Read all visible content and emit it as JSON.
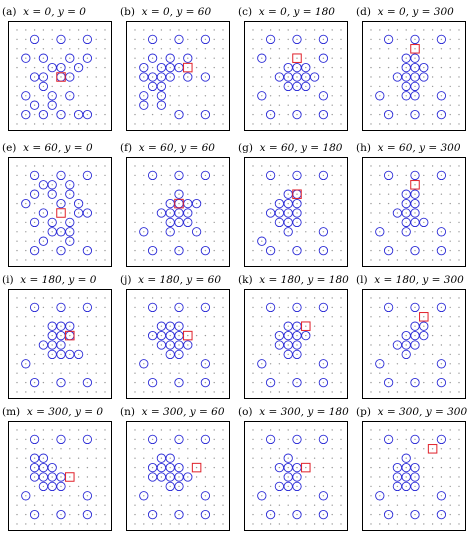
{
  "panels": [
    {
      "label": "(a)",
      "title": "x = 0, y = 0",
      "circles": [
        [
          2,
          1
        ],
        [
          5,
          1
        ],
        [
          8,
          1
        ],
        [
          1,
          3
        ],
        [
          3,
          3
        ],
        [
          6,
          3
        ],
        [
          8,
          3
        ],
        [
          4,
          4
        ],
        [
          5,
          4
        ],
        [
          7,
          4
        ],
        [
          2,
          5
        ],
        [
          3,
          5
        ],
        [
          5,
          5
        ],
        [
          6,
          5
        ],
        [
          3,
          6
        ],
        [
          1,
          7
        ],
        [
          4,
          7
        ],
        [
          6,
          7
        ],
        [
          2,
          8
        ],
        [
          4,
          8
        ],
        [
          1,
          9
        ],
        [
          3,
          9
        ],
        [
          5,
          9
        ],
        [
          7,
          9
        ],
        [
          8,
          9
        ]
      ],
      "square": [
        5,
        5
      ]
    },
    {
      "label": "(b)",
      "title": "x = 0, y = 60",
      "circles": [
        [
          2,
          1
        ],
        [
          5,
          1
        ],
        [
          8,
          1
        ],
        [
          2,
          3
        ],
        [
          4,
          3
        ],
        [
          6,
          3
        ],
        [
          1,
          4
        ],
        [
          3,
          4
        ],
        [
          4,
          4
        ],
        [
          5,
          4
        ],
        [
          1,
          5
        ],
        [
          2,
          5
        ],
        [
          3,
          5
        ],
        [
          4,
          5
        ],
        [
          6,
          5
        ],
        [
          8,
          5
        ],
        [
          2,
          6
        ],
        [
          3,
          6
        ],
        [
          1,
          7
        ],
        [
          3,
          7
        ],
        [
          1,
          8
        ],
        [
          3,
          8
        ],
        [
          5,
          9
        ],
        [
          8,
          9
        ]
      ],
      "square": [
        6,
        4
      ]
    },
    {
      "label": "(c)",
      "title": "x = 0, y = 180",
      "circles": [
        [
          2,
          1
        ],
        [
          5,
          1
        ],
        [
          8,
          1
        ],
        [
          1,
          3
        ],
        [
          8,
          3
        ],
        [
          4,
          4
        ],
        [
          5,
          4
        ],
        [
          6,
          4
        ],
        [
          3,
          5
        ],
        [
          4,
          5
        ],
        [
          5,
          5
        ],
        [
          6,
          5
        ],
        [
          7,
          5
        ],
        [
          4,
          6
        ],
        [
          5,
          6
        ],
        [
          6,
          6
        ],
        [
          1,
          7
        ],
        [
          8,
          7
        ],
        [
          2,
          9
        ],
        [
          5,
          9
        ],
        [
          8,
          9
        ]
      ],
      "square": [
        5,
        3
      ]
    },
    {
      "label": "(d)",
      "title": "x = 0, y = 300",
      "circles": [
        [
          2,
          1
        ],
        [
          5,
          1
        ],
        [
          8,
          1
        ],
        [
          4,
          3
        ],
        [
          5,
          3
        ],
        [
          4,
          4
        ],
        [
          5,
          4
        ],
        [
          6,
          4
        ],
        [
          3,
          5
        ],
        [
          4,
          5
        ],
        [
          5,
          5
        ],
        [
          6,
          5
        ],
        [
          4,
          6
        ],
        [
          5,
          6
        ],
        [
          1,
          7
        ],
        [
          4,
          7
        ],
        [
          5,
          7
        ],
        [
          8,
          7
        ],
        [
          2,
          9
        ],
        [
          5,
          9
        ],
        [
          8,
          9
        ]
      ],
      "square": [
        5,
        2
      ]
    },
    {
      "label": "(e)",
      "title": "x = 60, y = 0",
      "circles": [
        [
          2,
          1
        ],
        [
          5,
          1
        ],
        [
          8,
          1
        ],
        [
          3,
          2
        ],
        [
          4,
          2
        ],
        [
          6,
          2
        ],
        [
          2,
          3
        ],
        [
          4,
          3
        ],
        [
          6,
          3
        ],
        [
          1,
          4
        ],
        [
          5,
          4
        ],
        [
          7,
          4
        ],
        [
          3,
          5
        ],
        [
          7,
          5
        ],
        [
          8,
          5
        ],
        [
          2,
          6
        ],
        [
          4,
          6
        ],
        [
          6,
          6
        ],
        [
          4,
          7
        ],
        [
          5,
          7
        ],
        [
          6,
          7
        ],
        [
          3,
          8
        ],
        [
          6,
          8
        ],
        [
          2,
          9
        ],
        [
          5,
          9
        ],
        [
          8,
          9
        ]
      ],
      "square": [
        5,
        5
      ]
    },
    {
      "label": "(f)",
      "title": "x = 60, y = 60",
      "circles": [
        [
          2,
          1
        ],
        [
          5,
          1
        ],
        [
          8,
          1
        ],
        [
          5,
          3
        ],
        [
          4,
          4
        ],
        [
          5,
          4
        ],
        [
          6,
          4
        ],
        [
          7,
          4
        ],
        [
          3,
          5
        ],
        [
          4,
          5
        ],
        [
          5,
          5
        ],
        [
          6,
          5
        ],
        [
          4,
          6
        ],
        [
          5,
          6
        ],
        [
          6,
          6
        ],
        [
          1,
          7
        ],
        [
          4,
          7
        ],
        [
          7,
          7
        ],
        [
          2,
          9
        ],
        [
          5,
          9
        ],
        [
          8,
          9
        ]
      ],
      "square": [
        5,
        4
      ]
    },
    {
      "label": "(g)",
      "title": "x = 60, y = 180",
      "circles": [
        [
          2,
          1
        ],
        [
          5,
          1
        ],
        [
          8,
          1
        ],
        [
          4,
          3
        ],
        [
          5,
          3
        ],
        [
          3,
          4
        ],
        [
          4,
          4
        ],
        [
          5,
          4
        ],
        [
          2,
          5
        ],
        [
          3,
          5
        ],
        [
          4,
          5
        ],
        [
          5,
          5
        ],
        [
          3,
          6
        ],
        [
          4,
          6
        ],
        [
          5,
          6
        ],
        [
          4,
          7
        ],
        [
          1,
          8
        ],
        [
          8,
          7
        ],
        [
          2,
          9
        ],
        [
          5,
          9
        ],
        [
          8,
          9
        ]
      ],
      "square": [
        5,
        3
      ]
    },
    {
      "label": "(h)",
      "title": "x = 60, y = 300",
      "circles": [
        [
          2,
          1
        ],
        [
          5,
          1
        ],
        [
          8,
          1
        ],
        [
          4,
          3
        ],
        [
          5,
          3
        ],
        [
          4,
          4
        ],
        [
          5,
          4
        ],
        [
          3,
          5
        ],
        [
          4,
          5
        ],
        [
          5,
          5
        ],
        [
          4,
          6
        ],
        [
          5,
          6
        ],
        [
          6,
          6
        ],
        [
          4,
          7
        ],
        [
          1,
          7
        ],
        [
          8,
          7
        ],
        [
          2,
          9
        ],
        [
          5,
          9
        ],
        [
          8,
          9
        ]
      ],
      "square": [
        5,
        2
      ]
    },
    {
      "label": "(i)",
      "title": "x = 180, y = 0",
      "circles": [
        [
          2,
          1
        ],
        [
          5,
          1
        ],
        [
          8,
          1
        ],
        [
          4,
          3
        ],
        [
          5,
          3
        ],
        [
          6,
          3
        ],
        [
          4,
          4
        ],
        [
          5,
          4
        ],
        [
          6,
          4
        ],
        [
          3,
          5
        ],
        [
          4,
          5
        ],
        [
          5,
          5
        ],
        [
          4,
          6
        ],
        [
          5,
          6
        ],
        [
          6,
          6
        ],
        [
          1,
          7
        ],
        [
          7,
          6
        ],
        [
          2,
          9
        ],
        [
          5,
          9
        ],
        [
          8,
          9
        ]
      ],
      "square": [
        6,
        4
      ]
    },
    {
      "label": "(j)",
      "title": "x = 180, y = 60",
      "circles": [
        [
          2,
          1
        ],
        [
          5,
          1
        ],
        [
          8,
          1
        ],
        [
          3,
          3
        ],
        [
          4,
          3
        ],
        [
          5,
          3
        ],
        [
          2,
          4
        ],
        [
          3,
          4
        ],
        [
          4,
          4
        ],
        [
          5,
          4
        ],
        [
          3,
          5
        ],
        [
          4,
          5
        ],
        [
          5,
          5
        ],
        [
          6,
          5
        ],
        [
          4,
          6
        ],
        [
          5,
          6
        ],
        [
          1,
          7
        ],
        [
          8,
          7
        ],
        [
          2,
          9
        ],
        [
          5,
          9
        ],
        [
          8,
          9
        ]
      ],
      "square": [
        6,
        4
      ]
    },
    {
      "label": "(k)",
      "title": "x = 180, y = 180",
      "circles": [
        [
          2,
          1
        ],
        [
          5,
          1
        ],
        [
          8,
          1
        ],
        [
          4,
          3
        ],
        [
          5,
          3
        ],
        [
          3,
          4
        ],
        [
          4,
          4
        ],
        [
          5,
          4
        ],
        [
          6,
          4
        ],
        [
          3,
          5
        ],
        [
          4,
          5
        ],
        [
          5,
          5
        ],
        [
          4,
          6
        ],
        [
          5,
          6
        ],
        [
          1,
          7
        ],
        [
          8,
          7
        ],
        [
          2,
          9
        ],
        [
          5,
          9
        ],
        [
          8,
          9
        ]
      ],
      "square": [
        6,
        3
      ]
    },
    {
      "label": "(l)",
      "title": "x = 180, y = 300",
      "circles": [
        [
          2,
          1
        ],
        [
          5,
          1
        ],
        [
          8,
          1
        ],
        [
          5,
          3
        ],
        [
          6,
          3
        ],
        [
          4,
          4
        ],
        [
          5,
          4
        ],
        [
          6,
          4
        ],
        [
          3,
          5
        ],
        [
          4,
          5
        ],
        [
          5,
          5
        ],
        [
          4,
          6
        ],
        [
          1,
          7
        ],
        [
          8,
          7
        ],
        [
          2,
          9
        ],
        [
          5,
          9
        ],
        [
          8,
          9
        ]
      ],
      "square": [
        6,
        2
      ]
    },
    {
      "label": "(m)",
      "title": "x = 300, y = 0",
      "circles": [
        [
          2,
          1
        ],
        [
          5,
          1
        ],
        [
          8,
          1
        ],
        [
          2,
          3
        ],
        [
          3,
          3
        ],
        [
          2,
          4
        ],
        [
          3,
          4
        ],
        [
          4,
          4
        ],
        [
          2,
          5
        ],
        [
          3,
          5
        ],
        [
          4,
          5
        ],
        [
          5,
          5
        ],
        [
          3,
          6
        ],
        [
          4,
          6
        ],
        [
          5,
          6
        ],
        [
          1,
          7
        ],
        [
          8,
          7
        ],
        [
          2,
          9
        ],
        [
          5,
          9
        ],
        [
          8,
          9
        ]
      ],
      "square": [
        6,
        5
      ]
    },
    {
      "label": "(n)",
      "title": "x = 300, y = 60",
      "circles": [
        [
          2,
          1
        ],
        [
          5,
          1
        ],
        [
          8,
          1
        ],
        [
          3,
          3
        ],
        [
          4,
          3
        ],
        [
          2,
          4
        ],
        [
          3,
          4
        ],
        [
          4,
          4
        ],
        [
          5,
          4
        ],
        [
          2,
          5
        ],
        [
          3,
          5
        ],
        [
          4,
          5
        ],
        [
          5,
          5
        ],
        [
          6,
          5
        ],
        [
          4,
          6
        ],
        [
          5,
          6
        ],
        [
          1,
          7
        ],
        [
          8,
          7
        ],
        [
          2,
          9
        ],
        [
          5,
          9
        ],
        [
          8,
          9
        ]
      ],
      "square": [
        7,
        4
      ]
    },
    {
      "label": "(o)",
      "title": "x = 300, y = 180",
      "circles": [
        [
          2,
          1
        ],
        [
          5,
          1
        ],
        [
          8,
          1
        ],
        [
          4,
          3
        ],
        [
          3,
          4
        ],
        [
          4,
          4
        ],
        [
          5,
          4
        ],
        [
          4,
          5
        ],
        [
          5,
          5
        ],
        [
          3,
          6
        ],
        [
          4,
          6
        ],
        [
          5,
          6
        ],
        [
          1,
          7
        ],
        [
          8,
          7
        ],
        [
          2,
          9
        ],
        [
          5,
          9
        ],
        [
          8,
          9
        ]
      ],
      "square": [
        6,
        4
      ]
    },
    {
      "label": "(p)",
      "title": "x = 300, y = 300",
      "circles": [
        [
          2,
          1
        ],
        [
          5,
          1
        ],
        [
          8,
          1
        ],
        [
          4,
          3
        ],
        [
          3,
          4
        ],
        [
          4,
          4
        ],
        [
          5,
          4
        ],
        [
          3,
          5
        ],
        [
          4,
          5
        ],
        [
          5,
          5
        ],
        [
          3,
          6
        ],
        [
          4,
          6
        ],
        [
          5,
          6
        ],
        [
          1,
          7
        ],
        [
          8,
          7
        ],
        [
          2,
          9
        ],
        [
          5,
          9
        ],
        [
          8,
          9
        ]
      ],
      "square": [
        7,
        2
      ]
    }
  ],
  "colors": {
    "circle": "#2b2bd6",
    "square": "#e0202a",
    "dot": "#9a9a9a",
    "frame": "#000000"
  }
}
